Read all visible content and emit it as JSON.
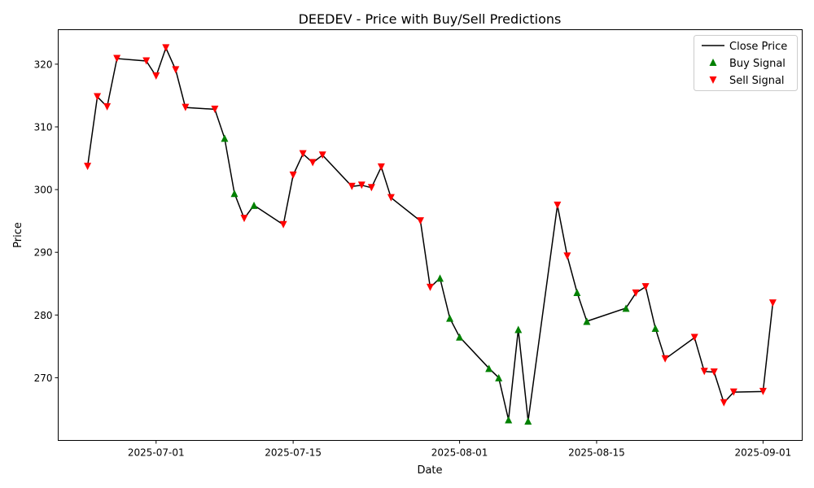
{
  "chart_data": {
    "type": "line",
    "title": "DEEDEV - Price with Buy/Sell Predictions",
    "xlabel": "Date",
    "ylabel": "Price",
    "xlim": [
      "2025-06-21",
      "2025-09-05"
    ],
    "ylim": [
      260.0,
      325.5
    ],
    "xticks": [
      "2025-07-01",
      "2025-07-15",
      "2025-08-01",
      "2025-08-15",
      "2025-09-01"
    ],
    "yticks": [
      270,
      280,
      290,
      300,
      310,
      320
    ],
    "grid": false,
    "legend_position": "top-right",
    "legend": [
      "Close Price",
      "Buy Signal",
      "Sell Signal"
    ],
    "colors": {
      "close": "#000000",
      "buy": "#008000",
      "sell": "#ff0000"
    },
    "series": [
      {
        "name": "Close Price",
        "x": [
          "2025-06-24",
          "2025-06-25",
          "2025-06-26",
          "2025-06-27",
          "2025-06-30",
          "2025-07-01",
          "2025-07-02",
          "2025-07-03",
          "2025-07-04",
          "2025-07-07",
          "2025-07-08",
          "2025-07-09",
          "2025-07-10",
          "2025-07-11",
          "2025-07-14",
          "2025-07-15",
          "2025-07-16",
          "2025-07-17",
          "2025-07-18",
          "2025-07-21",
          "2025-07-22",
          "2025-07-23",
          "2025-07-24",
          "2025-07-25",
          "2025-07-28",
          "2025-07-29",
          "2025-07-30",
          "2025-07-31",
          "2025-08-01",
          "2025-08-04",
          "2025-08-05",
          "2025-08-06",
          "2025-08-07",
          "2025-08-08",
          "2025-08-11",
          "2025-08-12",
          "2025-08-13",
          "2025-08-14",
          "2025-08-18",
          "2025-08-19",
          "2025-08-20",
          "2025-08-21",
          "2025-08-22",
          "2025-08-25",
          "2025-08-26",
          "2025-08-27",
          "2025-08-28",
          "2025-08-29",
          "2025-09-01",
          "2025-09-02"
        ],
        "values": [
          303.7,
          314.8,
          313.2,
          320.9,
          320.5,
          318.1,
          322.6,
          319.1,
          313.1,
          312.8,
          308.2,
          299.4,
          295.4,
          297.5,
          294.4,
          302.3,
          305.7,
          304.3,
          305.5,
          300.5,
          300.7,
          300.3,
          303.6,
          298.7,
          295.0,
          284.4,
          285.9,
          279.5,
          276.5,
          271.5,
          270.0,
          263.3,
          277.7,
          263.1,
          297.5,
          289.4,
          283.6,
          279.0,
          281.1,
          283.5,
          284.5,
          277.9,
          273.0,
          276.4,
          271.0,
          270.9,
          266.0,
          267.7,
          267.8,
          281.9
        ]
      }
    ],
    "signals": {
      "buy": [
        "2025-07-08",
        "2025-07-09",
        "2025-07-11",
        "2025-07-30",
        "2025-07-31",
        "2025-08-01",
        "2025-08-04",
        "2025-08-05",
        "2025-08-06",
        "2025-08-07",
        "2025-08-08",
        "2025-08-13",
        "2025-08-14",
        "2025-08-18",
        "2025-08-21"
      ],
      "sell": [
        "2025-06-24",
        "2025-06-25",
        "2025-06-26",
        "2025-06-27",
        "2025-06-30",
        "2025-07-01",
        "2025-07-02",
        "2025-07-03",
        "2025-07-04",
        "2025-07-07",
        "2025-07-10",
        "2025-07-14",
        "2025-07-15",
        "2025-07-16",
        "2025-07-17",
        "2025-07-18",
        "2025-07-21",
        "2025-07-22",
        "2025-07-23",
        "2025-07-24",
        "2025-07-25",
        "2025-07-28",
        "2025-07-29",
        "2025-08-11",
        "2025-08-12",
        "2025-08-19",
        "2025-08-20",
        "2025-08-22",
        "2025-08-25",
        "2025-08-26",
        "2025-08-27",
        "2025-08-28",
        "2025-08-29",
        "2025-09-01",
        "2025-09-02"
      ]
    }
  }
}
